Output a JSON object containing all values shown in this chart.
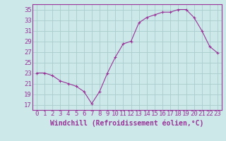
{
  "x": [
    0,
    1,
    2,
    3,
    4,
    5,
    6,
    7,
    8,
    9,
    10,
    11,
    12,
    13,
    14,
    15,
    16,
    17,
    18,
    19,
    20,
    21,
    22,
    23
  ],
  "y": [
    23.0,
    23.0,
    22.5,
    21.5,
    21.0,
    20.5,
    19.5,
    17.2,
    19.5,
    23.0,
    26.0,
    28.5,
    29.0,
    32.5,
    33.5,
    34.0,
    34.5,
    34.5,
    35.0,
    35.0,
    33.5,
    31.0,
    28.0,
    26.8
  ],
  "line_color": "#993399",
  "marker": "+",
  "marker_size": 3,
  "bg_color": "#cce8e8",
  "grid_color": "#aacccc",
  "xlabel": "Windchill (Refroidissement éolien,°C)",
  "ylim": [
    16,
    36
  ],
  "xlim": [
    -0.5,
    23.5
  ],
  "yticks": [
    17,
    19,
    21,
    23,
    25,
    27,
    29,
    31,
    33,
    35
  ],
  "xticks": [
    0,
    1,
    2,
    3,
    4,
    5,
    6,
    7,
    8,
    9,
    10,
    11,
    12,
    13,
    14,
    15,
    16,
    17,
    18,
    19,
    20,
    21,
    22,
    23
  ],
  "tick_color": "#993399",
  "label_color": "#993399",
  "axis_color": "#993399",
  "font_size": 6.5,
  "xlabel_fontsize": 7.0,
  "line_width": 0.8,
  "marker_edge_width": 0.8
}
